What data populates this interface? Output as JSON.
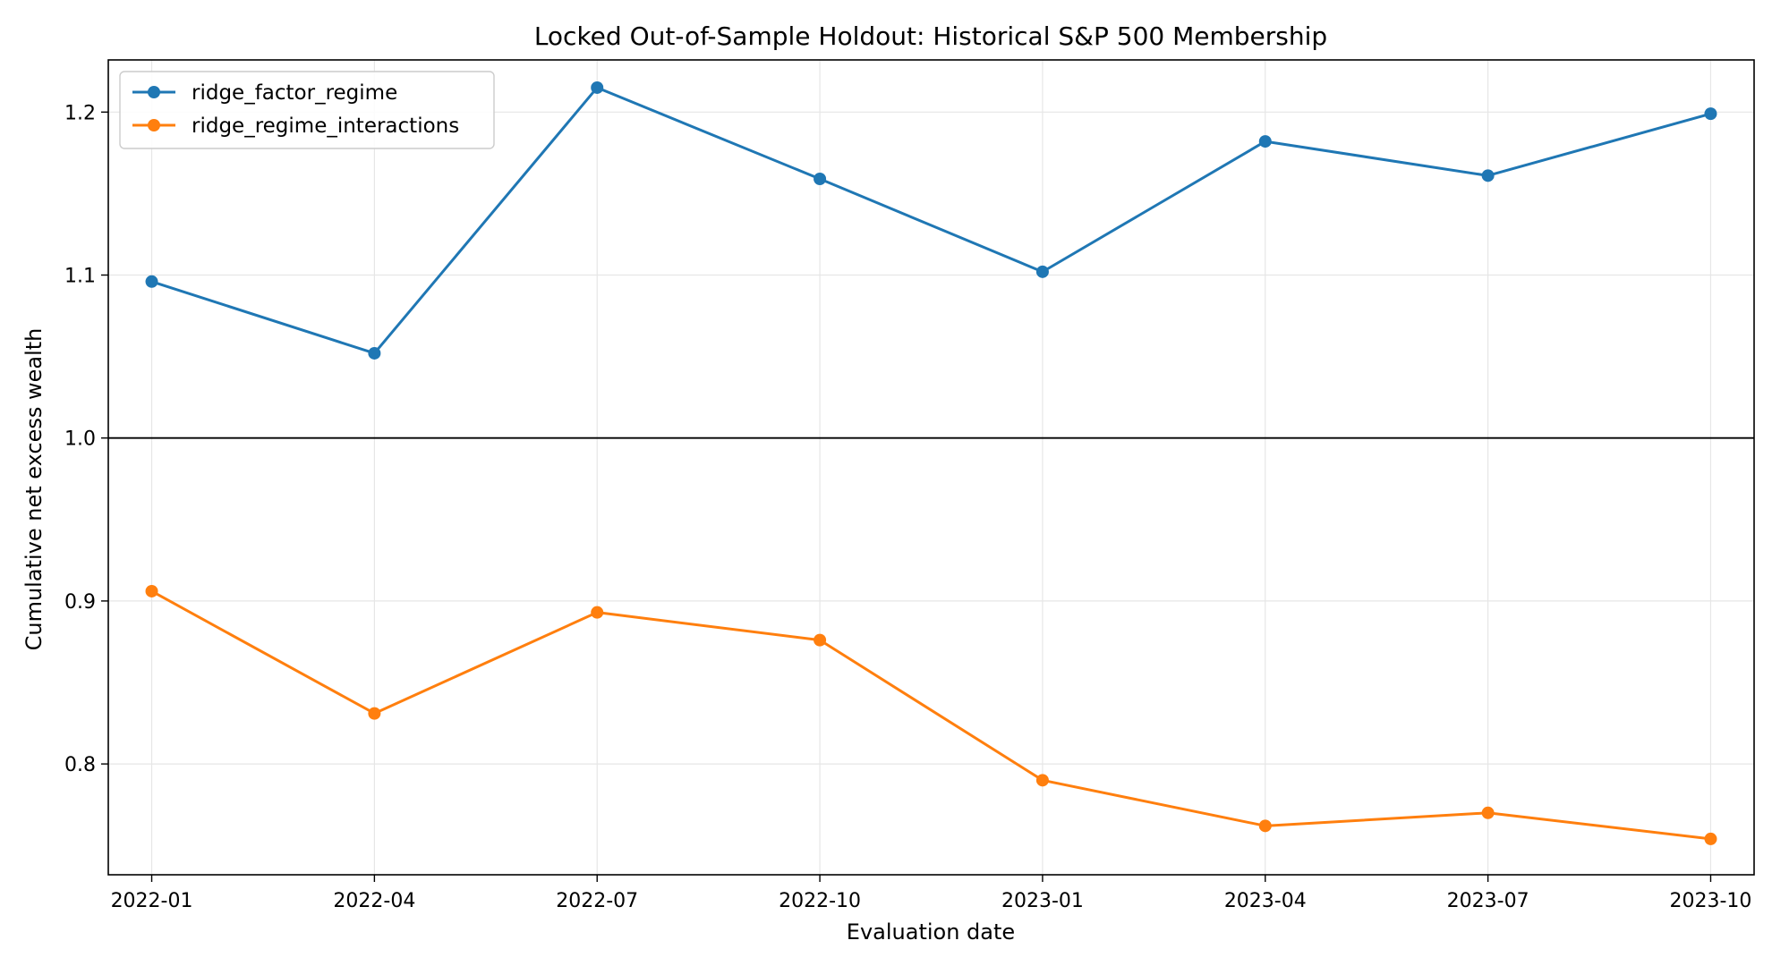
{
  "chart_data": {
    "type": "line",
    "title": "Locked Out-of-Sample Holdout: Historical S&P 500 Membership",
    "xlabel": "Evaluation date",
    "ylabel": "Cumulative net excess wealth",
    "x": [
      "2022-01",
      "2022-04",
      "2022-07",
      "2022-10",
      "2023-01",
      "2023-04",
      "2023-07",
      "2023-10"
    ],
    "x_ticks": [
      "2022-01",
      "2022-04",
      "2022-07",
      "2022-10",
      "2023-01",
      "2023-04",
      "2023-07",
      "2023-10"
    ],
    "ylim": [
      0.732,
      1.232
    ],
    "y_ticks": [
      "0.8",
      "0.9",
      "1.0",
      "1.1",
      "1.2"
    ],
    "reference_line": 1.0,
    "grid": true,
    "legend_position": "top-left",
    "series": [
      {
        "name": "ridge_factor_regime",
        "color": "#1f77b4",
        "values": [
          1.096,
          1.052,
          1.215,
          1.159,
          1.102,
          1.182,
          1.161,
          1.199
        ]
      },
      {
        "name": "ridge_regime_interactions",
        "color": "#ff7f0e",
        "values": [
          0.906,
          0.831,
          0.893,
          0.876,
          0.79,
          0.762,
          0.77,
          0.754
        ]
      }
    ]
  }
}
